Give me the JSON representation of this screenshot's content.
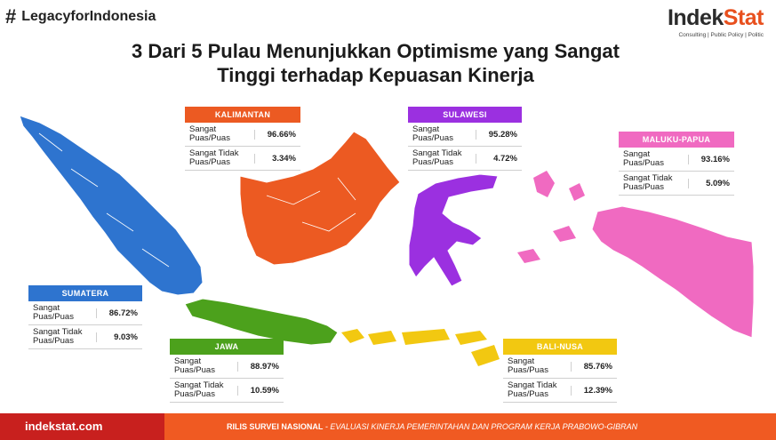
{
  "header": {
    "hashtag": "LegacyforIndonesia",
    "logo_part1": "Indek",
    "logo_part2": "Stat",
    "logo_tagline": "Consulting | Public Policy | Politic",
    "title_line1": "3 Dari 5 Pulau Menunjukkan Optimisme yang Sangat",
    "title_line2": "Tinggi terhadap Kepuasan Kinerja"
  },
  "chart_data": {
    "type": "table",
    "series": [
      {
        "name": "Sangat Puas/Puas",
        "values": [
          96.66,
          95.28,
          93.16,
          86.72,
          88.97,
          85.76
        ]
      },
      {
        "name": "Sangat Tidak Puas/Puas",
        "values": [
          3.34,
          4.72,
          5.09,
          9.03,
          10.59,
          12.39
        ]
      }
    ],
    "categories": [
      "KALIMANTAN",
      "SULAWESI",
      "MALUKU-PAPUA",
      "SUMATERA",
      "JAWA",
      "BALI-NUSA"
    ],
    "regions": [
      {
        "name": "KALIMANTAN",
        "color": "#ec5a22",
        "rows": [
          {
            "label": "Sangat Puas/Puas",
            "value": "96.66%"
          },
          {
            "label": "Sangat Tidak Puas/Puas",
            "value": "3.34%"
          }
        ]
      },
      {
        "name": "SULAWESI",
        "color": "#9b30e0",
        "rows": [
          {
            "label": "Sangat Puas/Puas",
            "value": "95.28%"
          },
          {
            "label": "Sangat Tidak Puas/Puas",
            "value": "4.72%"
          }
        ]
      },
      {
        "name": "MALUKU-PAPUA",
        "color": "#f06ac1",
        "rows": [
          {
            "label": "Sangat Puas/Puas",
            "value": "93.16%"
          },
          {
            "label": "Sangat Tidak Puas/Puas",
            "value": "5.09%"
          }
        ]
      },
      {
        "name": "SUMATERA",
        "color": "#2e74cf",
        "rows": [
          {
            "label": "Sangat Puas/Puas",
            "value": "86.72%"
          },
          {
            "label": "Sangat Tidak Puas/Puas",
            "value": "9.03%"
          }
        ]
      },
      {
        "name": "JAWA",
        "color": "#4ca11c",
        "rows": [
          {
            "label": "Sangat Puas/Puas",
            "value": "88.97%"
          },
          {
            "label": "Sangat Tidak Puas/Puas",
            "value": "10.59%"
          }
        ]
      },
      {
        "name": "BALI-NUSA",
        "color": "#f2c811",
        "rows": [
          {
            "label": "Sangat Puas/Puas",
            "value": "85.76%"
          },
          {
            "label": "Sangat Tidak Puas/Puas",
            "value": "12.39%"
          }
        ]
      }
    ]
  },
  "footer": {
    "site": "indekstat.com",
    "release_bold": "RILIS SURVEI NASIONAL",
    "release_rest": " - EVALUASI KINERJA PEMERINTAHAN DAN PROGRAM KERJA PRABOWO-GIBRAN",
    "color_left": "#c8201e",
    "color_right": "#f05a22"
  }
}
